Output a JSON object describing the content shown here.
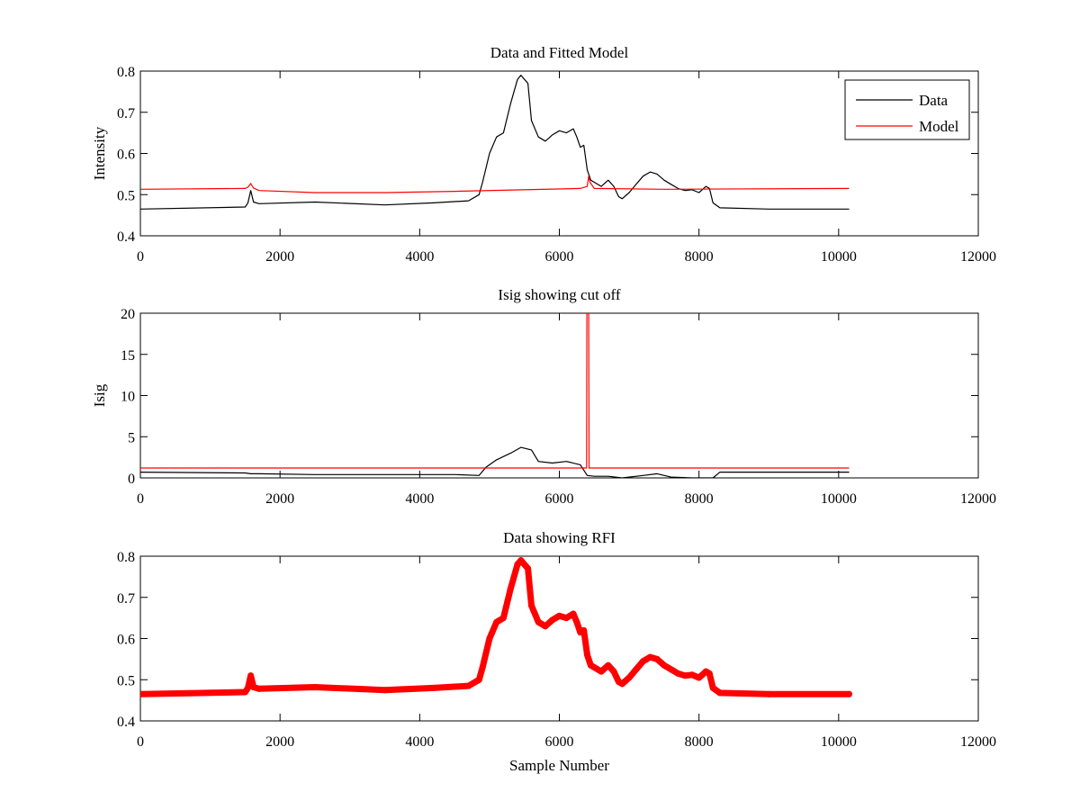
{
  "chart_data": [
    {
      "type": "line",
      "title": "Data and Fitted Model",
      "xlabel": "",
      "ylabel": "Intensity",
      "xlim": [
        0,
        12000
      ],
      "ylim": [
        0.4,
        0.8
      ],
      "xticks": [
        "0",
        "2000",
        "4000",
        "6000",
        "8000",
        "10000",
        "12000"
      ],
      "yticks": [
        "0.4",
        "0.5",
        "0.6",
        "0.7",
        "0.8"
      ],
      "grid": false,
      "legend": {
        "position": "top-right",
        "entries": [
          "Data",
          "Model"
        ]
      },
      "series": [
        {
          "name": "Data",
          "color": "#000000",
          "x": [
            0,
            1500,
            1540,
            1580,
            1620,
            1700,
            2500,
            3500,
            4200,
            4700,
            4850,
            4900,
            5000,
            5100,
            5200,
            5300,
            5400,
            5450,
            5550,
            5600,
            5700,
            5800,
            5900,
            6000,
            6100,
            6200,
            6250,
            6300,
            6350,
            6400,
            6450,
            6500,
            6600,
            6700,
            6780,
            6850,
            6900,
            7000,
            7100,
            7200,
            7300,
            7400,
            7500,
            7600,
            7700,
            7800,
            7900,
            8000,
            8100,
            8150,
            8200,
            8300,
            9000,
            10150
          ],
          "y": [
            0.465,
            0.47,
            0.48,
            0.51,
            0.482,
            0.478,
            0.482,
            0.475,
            0.48,
            0.485,
            0.5,
            0.53,
            0.6,
            0.64,
            0.65,
            0.72,
            0.78,
            0.79,
            0.77,
            0.68,
            0.64,
            0.63,
            0.645,
            0.655,
            0.65,
            0.66,
            0.64,
            0.615,
            0.62,
            0.56,
            0.535,
            0.53,
            0.52,
            0.535,
            0.52,
            0.495,
            0.49,
            0.505,
            0.525,
            0.545,
            0.555,
            0.55,
            0.535,
            0.525,
            0.515,
            0.51,
            0.512,
            0.505,
            0.52,
            0.515,
            0.48,
            0.468,
            0.465,
            0.465
          ]
        },
        {
          "name": "Model",
          "color": "#ff0000",
          "x": [
            0,
            1500,
            1540,
            1580,
            1620,
            1700,
            2500,
            3500,
            4500,
            6300,
            6400,
            6420,
            6440,
            6500,
            7500,
            10150
          ],
          "y": [
            0.513,
            0.515,
            0.518,
            0.527,
            0.516,
            0.51,
            0.505,
            0.505,
            0.508,
            0.515,
            0.52,
            0.545,
            0.53,
            0.515,
            0.513,
            0.515
          ]
        }
      ]
    },
    {
      "type": "line",
      "title": "Isig showing cut off",
      "xlabel": "",
      "ylabel": "Isig",
      "xlim": [
        0,
        12000
      ],
      "ylim": [
        0,
        20
      ],
      "xticks": [
        "0",
        "2000",
        "4000",
        "6000",
        "8000",
        "10000",
        "12000"
      ],
      "yticks": [
        "0",
        "5",
        "10",
        "15",
        "20"
      ],
      "grid": false,
      "series": [
        {
          "color": "#000000",
          "x": [
            0,
            1500,
            1580,
            1700,
            2500,
            3500,
            4500,
            4850,
            4950,
            5100,
            5300,
            5450,
            5600,
            5700,
            5900,
            6100,
            6300,
            6400,
            6500,
            6700,
            6900,
            7200,
            7400,
            7600,
            7900,
            8200,
            8300,
            10150
          ],
          "y": [
            0.7,
            0.6,
            0.5,
            0.5,
            0.4,
            0.4,
            0.4,
            0.3,
            1.3,
            2.2,
            3.0,
            3.7,
            3.4,
            2.0,
            1.8,
            2.0,
            1.6,
            0.3,
            0.2,
            0.2,
            0.0,
            0.3,
            0.5,
            0.1,
            0.0,
            0.0,
            0.7,
            0.7
          ]
        },
        {
          "color": "#ff0000",
          "x": [
            0,
            6390,
            6395,
            6420,
            6425,
            10150
          ],
          "y": [
            1.2,
            1.2,
            20,
            20,
            1.2,
            1.2
          ]
        }
      ]
    },
    {
      "type": "scatter",
      "title": "Data showing RFI",
      "xlabel": "Sample Number",
      "ylabel": "",
      "xlim": [
        0,
        12000
      ],
      "ylim": [
        0.4,
        0.8
      ],
      "xticks": [
        "0",
        "2000",
        "4000",
        "6000",
        "8000",
        "10000",
        "12000"
      ],
      "yticks": [
        "0.4",
        "0.5",
        "0.6",
        "0.7",
        "0.8"
      ],
      "grid": false,
      "series": [
        {
          "color": "#ff0000",
          "x": [
            0,
            1500,
            1540,
            1580,
            1620,
            1700,
            2500,
            3500,
            4200,
            4700,
            4850,
            4900,
            5000,
            5100,
            5200,
            5300,
            5400,
            5450,
            5550,
            5600,
            5700,
            5800,
            5900,
            6000,
            6100,
            6200,
            6250,
            6300,
            6350,
            6400,
            6450,
            6500,
            6600,
            6700,
            6780,
            6850,
            6900,
            7000,
            7100,
            7200,
            7300,
            7400,
            7500,
            7600,
            7700,
            7800,
            7900,
            8000,
            8100,
            8150,
            8200,
            8300,
            9000,
            10150
          ],
          "y": [
            0.465,
            0.47,
            0.48,
            0.51,
            0.482,
            0.478,
            0.482,
            0.475,
            0.48,
            0.485,
            0.5,
            0.53,
            0.6,
            0.64,
            0.65,
            0.72,
            0.78,
            0.79,
            0.77,
            0.68,
            0.64,
            0.63,
            0.645,
            0.655,
            0.65,
            0.66,
            0.64,
            0.615,
            0.62,
            0.56,
            0.535,
            0.53,
            0.52,
            0.535,
            0.52,
            0.495,
            0.49,
            0.505,
            0.525,
            0.545,
            0.555,
            0.55,
            0.535,
            0.525,
            0.515,
            0.51,
            0.512,
            0.505,
            0.52,
            0.515,
            0.48,
            0.468,
            0.465,
            0.465
          ]
        }
      ]
    }
  ]
}
